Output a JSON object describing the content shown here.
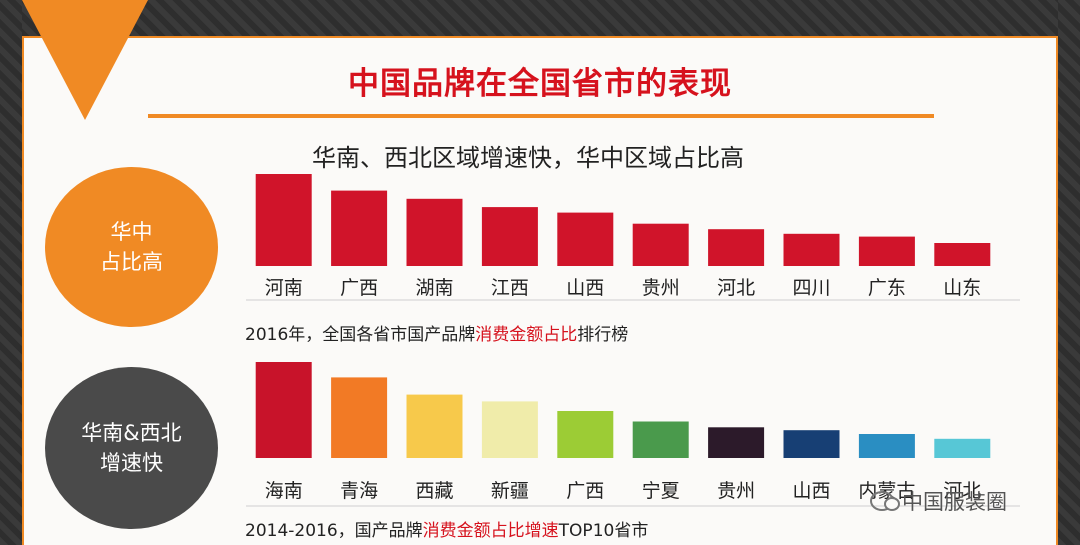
{
  "title": "中国品牌在全国省市的表现",
  "subtitle": "华南、西北区域增速快，华中区域占比高",
  "circle1": {
    "line1": "华中",
    "line2": "占比高"
  },
  "circle2": {
    "line1": "华南&西北",
    "line2": "增速快"
  },
  "caption1": {
    "prefix": "2016年，全国各省市国产品牌",
    "highlight": "消费金额占比",
    "suffix": "排行榜"
  },
  "caption2": {
    "prefix": "2014-2016，国产品牌",
    "highlight": "消费金额占比增速",
    "suffix": "TOP10省市"
  },
  "watermark": "中国服装圈",
  "colors": {
    "accent": "#f08a24",
    "red": "#d6121d"
  },
  "chart_data": [
    {
      "type": "bar",
      "title": "2016年，全国各省市国产品牌消费金额占比排行榜",
      "categories": [
        "河南",
        "广西",
        "湖南",
        "江西",
        "山西",
        "贵州",
        "河北",
        "四川",
        "广东",
        "山东"
      ],
      "values": [
        100,
        82,
        73,
        64,
        58,
        46,
        40,
        35,
        32,
        25
      ],
      "colors": [
        "#d0142a",
        "#d0142a",
        "#d0142a",
        "#d0142a",
        "#d0142a",
        "#d0142a",
        "#d0142a",
        "#d0142a",
        "#d0142a",
        "#d0142a"
      ]
    },
    {
      "type": "bar",
      "title": "2014-2016，国产品牌消费金额占比增速TOP10省市",
      "categories": [
        "海南",
        "青海",
        "西藏",
        "新疆",
        "广西",
        "宁夏",
        "贵州",
        "山西",
        "内蒙古",
        "河北"
      ],
      "values": [
        100,
        84,
        66,
        59,
        49,
        38,
        32,
        29,
        25,
        20
      ],
      "colors": [
        "#c8132a",
        "#f27a25",
        "#f7c94b",
        "#f0ecaa",
        "#9ccc35",
        "#4a9a4c",
        "#2c1a2a",
        "#173f74",
        "#2a8ec2",
        "#57c7d6"
      ]
    }
  ]
}
